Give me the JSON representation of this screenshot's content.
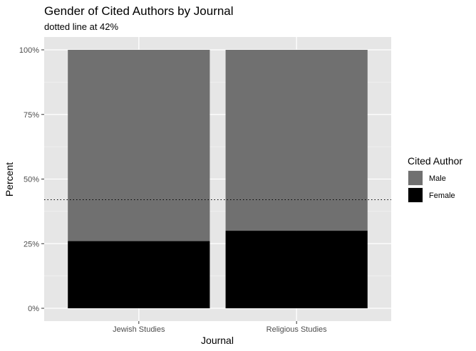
{
  "chart_data": {
    "type": "bar",
    "stacked": true,
    "title": "Gender of Cited Authors by Journal",
    "subtitle": "dotted line at 42%",
    "xlabel": "Journal",
    "ylabel": "Percent",
    "categories": [
      "Jewish Studies",
      "Religious Studies"
    ],
    "series": [
      {
        "name": "Female",
        "values": [
          26,
          30
        ],
        "color": "#000000"
      },
      {
        "name": "Male",
        "values": [
          74,
          70
        ],
        "color": "#707070"
      }
    ],
    "ylim": [
      0,
      100
    ],
    "yticks": [
      0,
      25,
      50,
      75,
      100
    ],
    "ytick_labels": [
      "0%",
      "25%",
      "50%",
      "75%",
      "100%"
    ],
    "reference_line": {
      "value": 42,
      "style": "dotted"
    },
    "legend": {
      "title": "Cited Author",
      "position": "right",
      "entries": [
        {
          "label": "Male",
          "color": "#707070"
        },
        {
          "label": "Female",
          "color": "#000000"
        }
      ]
    },
    "panel_background": "#e6e6e6",
    "grid": true
  }
}
